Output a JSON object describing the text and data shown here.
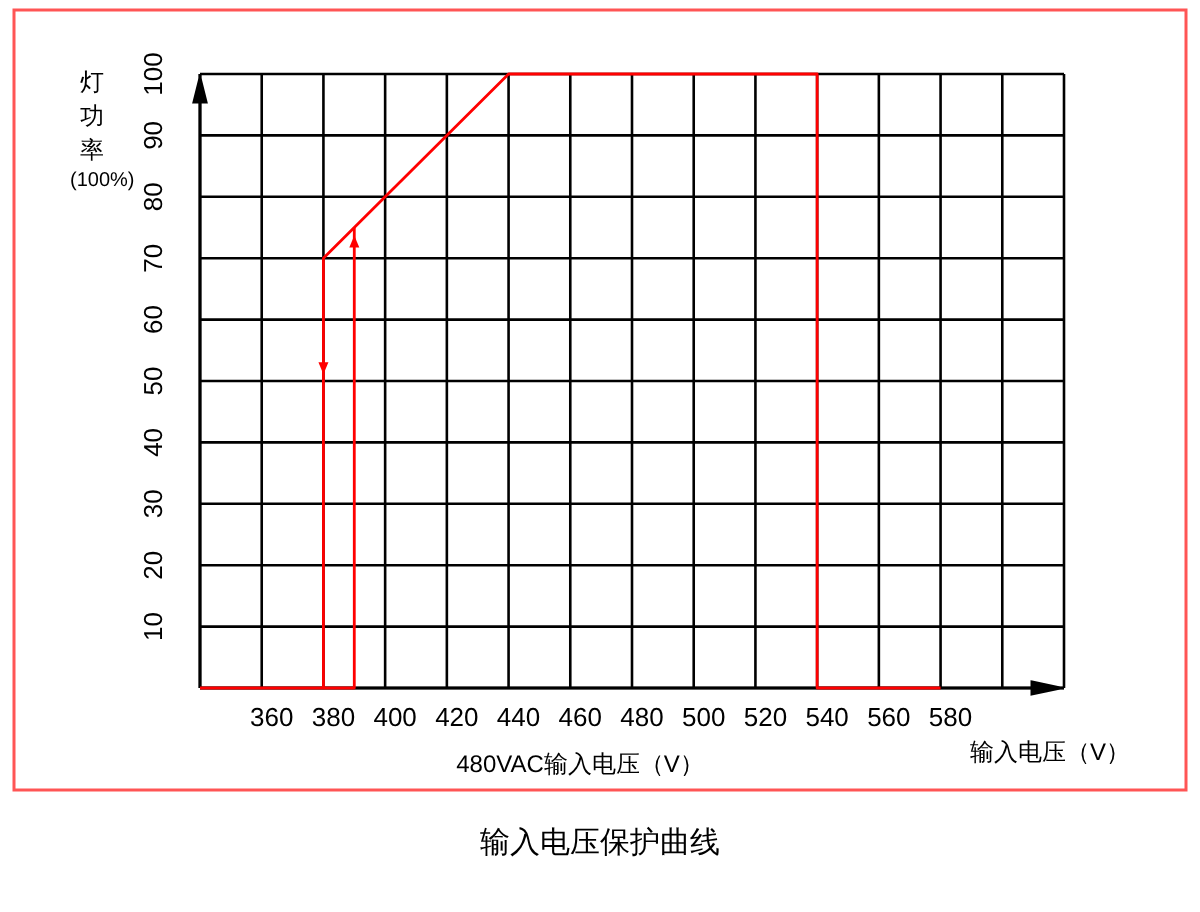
{
  "chart_data": {
    "type": "line",
    "title": "输入电压保护曲线",
    "xlabel": "480VAC输入电压（V）",
    "ylabel": "灯功率(100%)",
    "annotations": [
      "输入电压（V）"
    ],
    "series": [
      {
        "color": "#ff0000",
        "x": [
          340,
          380,
          380,
          440,
          540,
          540,
          580
        ],
        "values": [
          0,
          0,
          70,
          100,
          100,
          0,
          0
        ]
      },
      {
        "color": "#ff0000",
        "x": [
          380,
          390,
          390
        ],
        "values": [
          0,
          0,
          75
        ]
      }
    ],
    "xlim": [
      340,
      620
    ],
    "ylim": [
      0,
      100
    ],
    "xticks": [
      {
        "value": 340,
        "label": null
      },
      360,
      380,
      400,
      420,
      440,
      460,
      480,
      500,
      520,
      540,
      560,
      580,
      {
        "value": 600,
        "label": null
      },
      {
        "value": 620,
        "label": null
      }
    ],
    "yticks": [
      {
        "value": 0,
        "label": null
      },
      10,
      20,
      30,
      40,
      50,
      60,
      70,
      80,
      90,
      100
    ],
    "grid": true,
    "marker": "none",
    "line_style": "solid"
  }
}
